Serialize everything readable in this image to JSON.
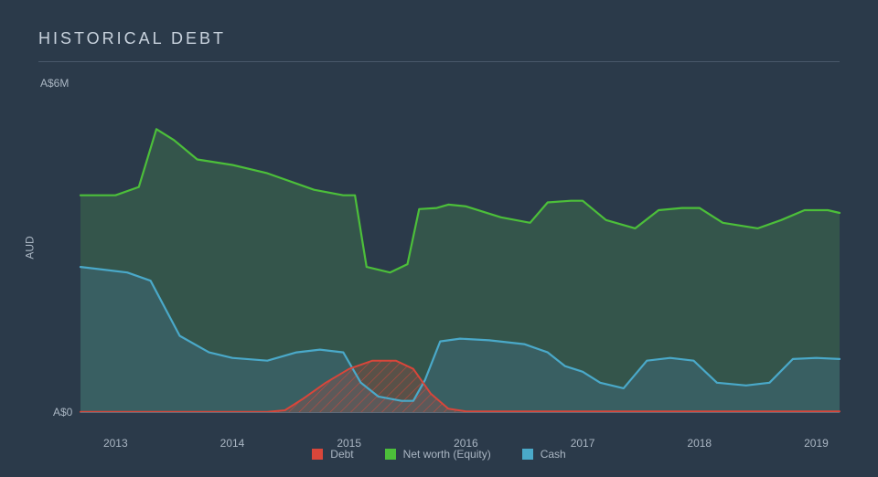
{
  "title": "HISTORICAL DEBT",
  "background_color": "#2b3a4a",
  "rule_color": "#49586a",
  "axis_text_color": "#aab6c3",
  "chart": {
    "type": "area",
    "ylabel": "AUD",
    "y_top_label": "A$6M",
    "y_bottom_label": "A$0",
    "ymin": 0,
    "ymax": 6,
    "xmin": 2012.7,
    "xmax": 2019.2,
    "x_ticks": [
      2013,
      2014,
      2015,
      2016,
      2017,
      2018,
      2019
    ],
    "baseline_color": "#5e6b7a",
    "series": {
      "equity": {
        "label": "Net worth (Equity)",
        "stroke": "#4cbf3a",
        "fill": "#3d6b4c",
        "fill_opacity": 0.55,
        "stroke_width": 2.2,
        "points": [
          [
            2012.7,
            3.95
          ],
          [
            2013.0,
            3.95
          ],
          [
            2013.2,
            4.1
          ],
          [
            2013.35,
            5.15
          ],
          [
            2013.5,
            4.95
          ],
          [
            2013.7,
            4.6
          ],
          [
            2014.0,
            4.5
          ],
          [
            2014.3,
            4.35
          ],
          [
            2014.7,
            4.05
          ],
          [
            2014.95,
            3.95
          ],
          [
            2015.05,
            3.95
          ],
          [
            2015.15,
            2.65
          ],
          [
            2015.35,
            2.55
          ],
          [
            2015.5,
            2.7
          ],
          [
            2015.6,
            3.7
          ],
          [
            2015.75,
            3.72
          ],
          [
            2015.85,
            3.78
          ],
          [
            2016.0,
            3.75
          ],
          [
            2016.3,
            3.55
          ],
          [
            2016.55,
            3.45
          ],
          [
            2016.7,
            3.82
          ],
          [
            2016.9,
            3.85
          ],
          [
            2017.0,
            3.85
          ],
          [
            2017.2,
            3.5
          ],
          [
            2017.45,
            3.35
          ],
          [
            2017.65,
            3.68
          ],
          [
            2017.85,
            3.72
          ],
          [
            2018.0,
            3.72
          ],
          [
            2018.2,
            3.45
          ],
          [
            2018.5,
            3.35
          ],
          [
            2018.7,
            3.5
          ],
          [
            2018.9,
            3.68
          ],
          [
            2019.1,
            3.68
          ],
          [
            2019.2,
            3.63
          ]
        ]
      },
      "cash": {
        "label": "Cash",
        "stroke": "#4aa9c9",
        "fill": "#3e6876",
        "fill_opacity": 0.55,
        "stroke_width": 2.2,
        "points": [
          [
            2012.7,
            2.65
          ],
          [
            2012.9,
            2.6
          ],
          [
            2013.1,
            2.55
          ],
          [
            2013.3,
            2.4
          ],
          [
            2013.55,
            1.4
          ],
          [
            2013.8,
            1.1
          ],
          [
            2014.0,
            1.0
          ],
          [
            2014.3,
            0.95
          ],
          [
            2014.55,
            1.1
          ],
          [
            2014.75,
            1.15
          ],
          [
            2014.95,
            1.1
          ],
          [
            2015.1,
            0.55
          ],
          [
            2015.25,
            0.3
          ],
          [
            2015.45,
            0.22
          ],
          [
            2015.55,
            0.22
          ],
          [
            2015.65,
            0.6
          ],
          [
            2015.78,
            1.3
          ],
          [
            2015.95,
            1.35
          ],
          [
            2016.2,
            1.32
          ],
          [
            2016.5,
            1.25
          ],
          [
            2016.7,
            1.1
          ],
          [
            2016.85,
            0.85
          ],
          [
            2017.0,
            0.75
          ],
          [
            2017.15,
            0.55
          ],
          [
            2017.35,
            0.45
          ],
          [
            2017.55,
            0.95
          ],
          [
            2017.75,
            1.0
          ],
          [
            2017.95,
            0.95
          ],
          [
            2018.15,
            0.55
          ],
          [
            2018.4,
            0.5
          ],
          [
            2018.6,
            0.55
          ],
          [
            2018.8,
            0.98
          ],
          [
            2019.0,
            1.0
          ],
          [
            2019.2,
            0.98
          ]
        ]
      },
      "debt": {
        "label": "Debt",
        "stroke": "#d9463a",
        "fill": "#d9463a",
        "fill_opacity": 0.22,
        "stroke_width": 2.0,
        "hatch": true,
        "hatch_color": "#d9463a",
        "points": [
          [
            2012.7,
            0.02
          ],
          [
            2014.3,
            0.02
          ],
          [
            2014.45,
            0.05
          ],
          [
            2014.6,
            0.25
          ],
          [
            2014.8,
            0.55
          ],
          [
            2015.0,
            0.8
          ],
          [
            2015.2,
            0.95
          ],
          [
            2015.4,
            0.95
          ],
          [
            2015.55,
            0.8
          ],
          [
            2015.7,
            0.35
          ],
          [
            2015.85,
            0.08
          ],
          [
            2016.0,
            0.03
          ],
          [
            2019.2,
            0.03
          ]
        ]
      }
    },
    "legend_order": [
      "debt",
      "equity",
      "cash"
    ]
  }
}
